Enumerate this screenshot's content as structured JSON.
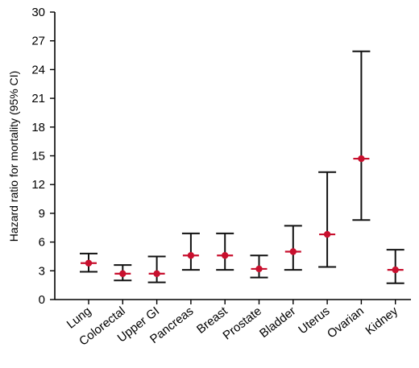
{
  "chart_data": {
    "type": "scatter",
    "title": "",
    "xlabel": "",
    "ylabel": "Hazard ratio for mortality (95% CI)",
    "ylim": [
      0,
      30
    ],
    "yticks": [
      0,
      3,
      6,
      9,
      12,
      15,
      18,
      21,
      24,
      27,
      30
    ],
    "categories": [
      "Lung",
      "Colorectal",
      "Upper GI",
      "Pancreas",
      "Breast",
      "Prostate",
      "Bladder",
      "Uterus",
      "Ovarian",
      "Kidney"
    ],
    "series": [
      {
        "estimate": [
          3.8,
          2.7,
          2.7,
          4.6,
          4.6,
          3.2,
          5.0,
          6.8,
          14.7,
          3.1
        ],
        "ci_lower": [
          2.9,
          2.0,
          1.8,
          3.1,
          3.1,
          2.3,
          3.1,
          3.4,
          8.3,
          1.7
        ],
        "ci_upper": [
          4.8,
          3.6,
          4.5,
          6.9,
          6.9,
          4.6,
          7.7,
          13.3,
          25.9,
          5.2
        ]
      }
    ],
    "colors": {
      "point": "#c8102e",
      "interval": "#111111"
    },
    "grid": false,
    "legend": "none"
  }
}
